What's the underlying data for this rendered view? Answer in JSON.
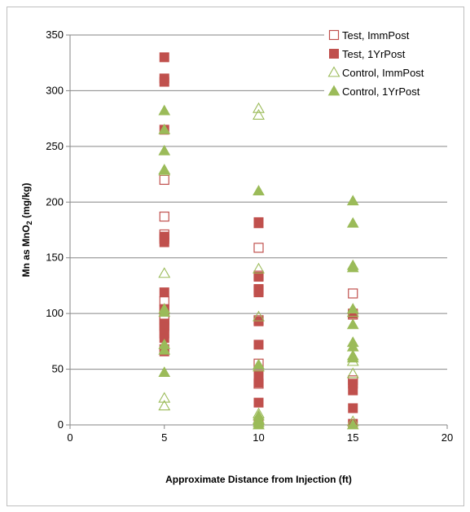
{
  "chart_data": {
    "type": "scatter",
    "title": "",
    "xlabel": "Approximate Distance from Injection (ft)",
    "ylabel_main": "Mn as MnO",
    "ylabel_sub": "2",
    "ylabel_tail": " (mg/kg)",
    "xlim": [
      0,
      20
    ],
    "ylim": [
      0,
      350
    ],
    "xticks": [
      0,
      5,
      10,
      15,
      20
    ],
    "yticks": [
      0,
      50,
      100,
      150,
      200,
      250,
      300,
      350
    ],
    "grid": "horizontal",
    "legend_position": "top-right",
    "series": [
      {
        "name": "Test, ImmPost",
        "marker": "open-square",
        "color": "#c0504d",
        "points": [
          [
            5,
            220
          ],
          [
            5,
            187
          ],
          [
            5,
            171
          ],
          [
            5,
            167
          ],
          [
            5,
            111
          ],
          [
            5,
            103
          ],
          [
            5,
            98
          ],
          [
            5,
            94
          ],
          [
            5,
            89
          ],
          [
            10,
            159
          ],
          [
            10,
            134
          ],
          [
            10,
            121
          ],
          [
            10,
            94
          ],
          [
            10,
            55
          ],
          [
            10,
            37
          ],
          [
            15,
            118
          ],
          [
            15,
            99
          ],
          [
            15,
            40
          ]
        ]
      },
      {
        "name": "Test, 1YrPost",
        "marker": "filled-square",
        "color": "#c0504d",
        "points": [
          [
            5,
            330
          ],
          [
            5,
            311
          ],
          [
            5,
            308
          ],
          [
            5,
            265
          ],
          [
            5,
            169
          ],
          [
            5,
            164
          ],
          [
            5,
            119
          ],
          [
            5,
            104
          ],
          [
            5,
            91
          ],
          [
            5,
            87
          ],
          [
            5,
            82
          ],
          [
            5,
            78
          ],
          [
            5,
            68
          ],
          [
            5,
            66
          ],
          [
            10,
            182
          ],
          [
            10,
            181
          ],
          [
            10,
            133
          ],
          [
            10,
            122
          ],
          [
            10,
            119
          ],
          [
            10,
            93
          ],
          [
            10,
            72
          ],
          [
            10,
            45
          ],
          [
            10,
            41
          ],
          [
            10,
            38
          ],
          [
            10,
            20
          ],
          [
            10,
            2
          ],
          [
            15,
            100
          ],
          [
            15,
            37
          ],
          [
            15,
            31
          ],
          [
            15,
            15
          ],
          [
            15,
            1
          ]
        ]
      },
      {
        "name": "Control, ImmPost",
        "marker": "open-triangle",
        "color": "#9bbb59",
        "points": [
          [
            5,
            228
          ],
          [
            5,
            136
          ],
          [
            5,
            24
          ],
          [
            5,
            17
          ],
          [
            10,
            284
          ],
          [
            10,
            278
          ],
          [
            10,
            140
          ],
          [
            10,
            97
          ],
          [
            10,
            52
          ],
          [
            10,
            10
          ],
          [
            10,
            5
          ],
          [
            15,
            101
          ],
          [
            15,
            57
          ],
          [
            15,
            46
          ],
          [
            15,
            3
          ]
        ]
      },
      {
        "name": "Control, 1YrPost",
        "marker": "filled-triangle",
        "color": "#9bbb59",
        "points": [
          [
            5,
            282
          ],
          [
            5,
            265
          ],
          [
            5,
            246
          ],
          [
            5,
            229
          ],
          [
            5,
            104
          ],
          [
            5,
            101
          ],
          [
            5,
            72
          ],
          [
            5,
            67
          ],
          [
            5,
            47
          ],
          [
            10,
            210
          ],
          [
            10,
            54
          ],
          [
            10,
            8
          ],
          [
            10,
            4
          ],
          [
            10,
            2
          ],
          [
            10,
            0
          ],
          [
            15,
            201
          ],
          [
            15,
            181
          ],
          [
            15,
            143
          ],
          [
            15,
            141
          ],
          [
            15,
            104
          ],
          [
            15,
            90
          ],
          [
            15,
            74
          ],
          [
            15,
            70
          ],
          [
            15,
            62
          ],
          [
            15,
            60
          ],
          [
            15,
            0
          ]
        ]
      }
    ]
  }
}
